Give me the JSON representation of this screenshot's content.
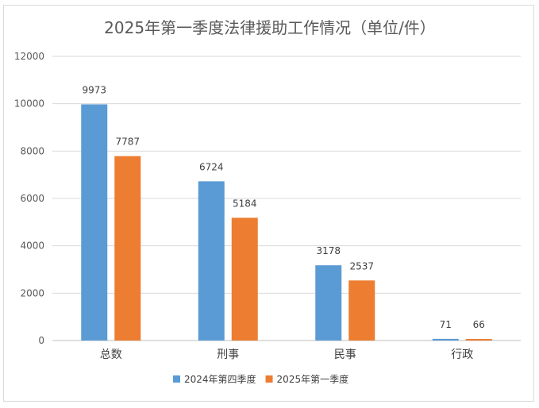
{
  "chart_data": {
    "type": "bar",
    "title": "2025年第一季度法律援助工作情况（单位/件）",
    "categories": [
      "总数",
      "刑事",
      "民事",
      "行政"
    ],
    "series": [
      {
        "name": "2024年第四季度",
        "values": [
          9973,
          6724,
          3178,
          71
        ],
        "color": "#5b9bd5"
      },
      {
        "name": "2025年第一季度",
        "values": [
          7787,
          5184,
          2537,
          66
        ],
        "color": "#ed7d31"
      }
    ],
    "ylim": [
      0,
      12000
    ],
    "yticks": [
      "0",
      "2000",
      "4000",
      "6000",
      "8000",
      "10000",
      "12000"
    ],
    "grid": true,
    "legend_position": "bottom"
  }
}
